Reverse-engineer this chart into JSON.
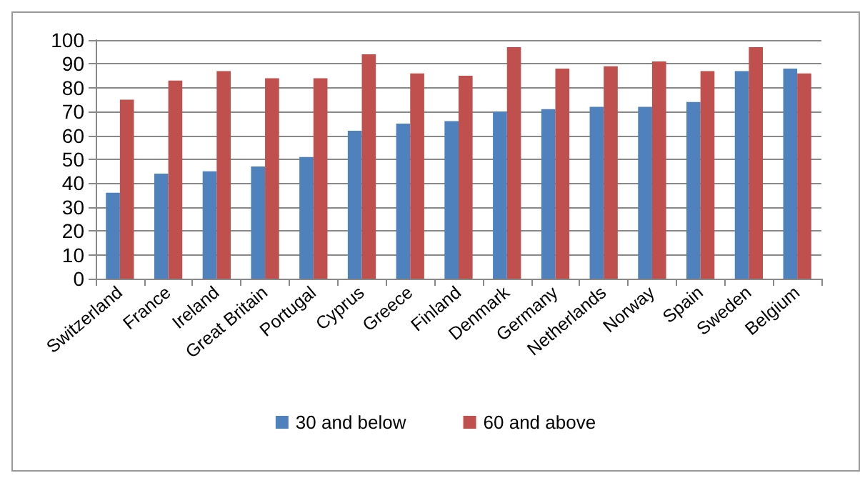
{
  "chart_data": {
    "type": "bar",
    "categories": [
      "Switzerland",
      "France",
      "Ireland",
      "Great Britain",
      "Portugal",
      "Cyprus",
      "Greece",
      "Finland",
      "Denmark",
      "Germany",
      "Netherlands",
      "Norway",
      "Spain",
      "Sweden",
      "Belgium"
    ],
    "series": [
      {
        "name": "30 and below",
        "color": "#4f81bd",
        "values": [
          36,
          44,
          45,
          47,
          51,
          62,
          65,
          66,
          70,
          71,
          72,
          72,
          74,
          87,
          88
        ]
      },
      {
        "name": "60 and above",
        "color": "#c0504d",
        "values": [
          75,
          83,
          87,
          84,
          84,
          94,
          86,
          85,
          97,
          88,
          89,
          91,
          87,
          97,
          86
        ]
      }
    ],
    "ylim": [
      0,
      100
    ],
    "yticks": [
      0,
      10,
      20,
      30,
      40,
      50,
      60,
      70,
      80,
      90,
      100
    ],
    "grid": "y",
    "legend": "bottom"
  }
}
